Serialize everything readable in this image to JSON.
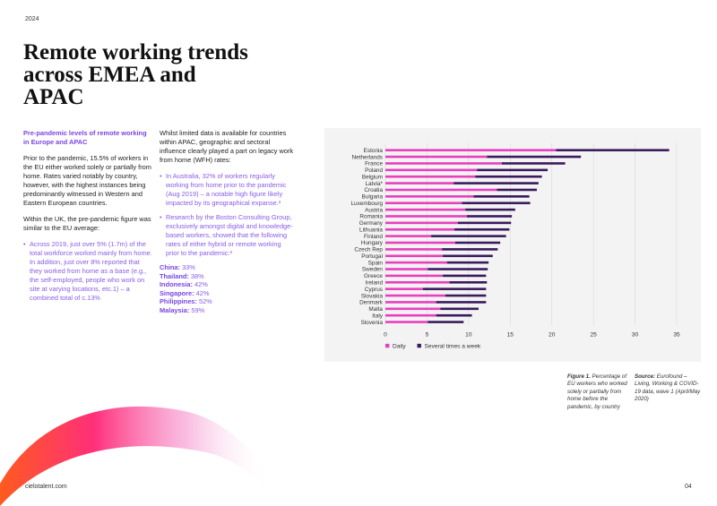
{
  "header": {
    "year": "2024"
  },
  "title": "Remote working trends across EMEA and APAC",
  "left_column": {
    "lead": "Pre-pandemic levels of remote working in Europe and APAC",
    "paragraph1": "Prior to the pandemic, 15.5% of workers in the EU either worked solely or partially from home. Rates varied notably by country, however, with the highest instances being predominantly witnessed in Western and Eastern European countries.",
    "paragraph2": "Within the UK, the pre-pandemic figure was similar to the EU average:",
    "bullets": [
      "Across 2019, just over 5% (1.7m) of the total workforce worked mainly from home. In addition, just over 8% reported that they worked from home as a base (e.g., the self-employed, people who work on site at varying locations, etc.1) – a combined total of c.13%"
    ]
  },
  "middle_column": {
    "paragraph1": "Whilst limited data is available for countries within APAC, geographic and sectoral influence clearly played a part on legacy work from home (WFH) rates:",
    "bullets": [
      "In Australia, 32% of workers regularly working from home prior to the pandemic (Aug 2019) – a notable high figure likely impacted by its geographical expanse.²",
      "Research by the Boston Consulting Group, exclusively amongst digital and knowledge-based workers, showed that the following rates of either hybrid or remote working prior to the pandemic:³"
    ],
    "rates": [
      {
        "country": "China:",
        "value": "33%"
      },
      {
        "country": "Thailand:",
        "value": "38%"
      },
      {
        "country": "Indonesia:",
        "value": "42%"
      },
      {
        "country": "Singapore:",
        "value": "42%"
      },
      {
        "country": "Philippines:",
        "value": "52%"
      },
      {
        "country": "Malaysia:",
        "value": "59%"
      }
    ]
  },
  "colors": {
    "daily": "#e83fbf",
    "several": "#3a1a5e",
    "accent": "#7a44e6",
    "panel": "#f3f3f3"
  },
  "chart_data": {
    "type": "bar",
    "orientation": "horizontal",
    "categories": [
      "Estonia",
      "Netherlands",
      "France",
      "Poland",
      "Belgium",
      "Latvia*",
      "Croatia",
      "Bulgaria",
      "Luxembourg",
      "Austria",
      "Romania",
      "Germany",
      "Lithuania",
      "Finland",
      "Hungary",
      "Czech Rep",
      "Portugal",
      "Spain",
      "Sweden",
      "Greece",
      "Ireland",
      "Cyprus",
      "Slovakia",
      "Denmark",
      "Malta",
      "Italy",
      "Slovenia"
    ],
    "series": [
      {
        "name": "Daily",
        "color": "#e83fbf",
        "values": [
          20.5,
          12.2,
          14.0,
          11.0,
          10.8,
          8.2,
          13.4,
          10.6,
          9.2,
          9.6,
          9.8,
          8.7,
          8.3,
          5.5,
          8.4,
          6.8,
          6.9,
          7.4,
          5.1,
          6.9,
          7.7,
          4.5,
          7.2,
          6.1,
          6.6,
          6.1,
          5.1
        ]
      },
      {
        "name": "Several times a week",
        "color": "#3a1a5e",
        "values": [
          13.6,
          11.3,
          7.6,
          8.5,
          8.0,
          10.2,
          4.8,
          6.7,
          8.2,
          6.0,
          5.4,
          6.4,
          6.6,
          9.0,
          5.4,
          6.7,
          6.0,
          5.0,
          7.2,
          5.2,
          4.5,
          7.6,
          4.9,
          6.0,
          4.6,
          4.3,
          4.3
        ]
      }
    ],
    "x_ticks": [
      "0",
      "5",
      "10",
      "15",
      "20",
      "25",
      "30",
      "35"
    ],
    "xlim": [
      0,
      35
    ],
    "stacked": true,
    "legend": "bottom-left"
  },
  "figure_caption": {
    "label": "Figure 1.",
    "text": " Percentage of EU workers who worked solely or partially from home before the pandemic, by country"
  },
  "source_caption": {
    "label": "Source:",
    "text": " Eurofound – Living, Working & COVID-19 data, wave 1 (April/May 2020)"
  },
  "footer": {
    "website": "cielotalent.com",
    "page": "04"
  }
}
